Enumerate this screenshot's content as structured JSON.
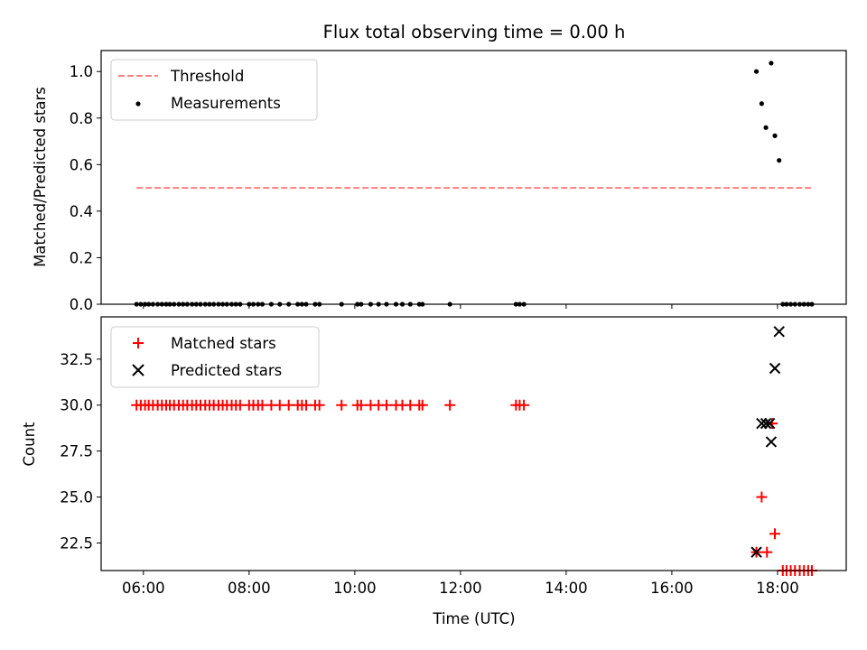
{
  "chart_data": [
    {
      "type": "scatter",
      "title": "Flux total observing time = 0.00 h",
      "ylabel": "Matched/Predicted stars",
      "xlabel": "",
      "ylim": [
        0,
        1.09
      ],
      "xlim_hours": [
        5.2,
        19.3
      ],
      "yticks": [
        0,
        0.2,
        0.4,
        0.6,
        0.8,
        1.0
      ],
      "ytick_labels": [
        "0.0",
        "0.2",
        "0.4",
        "0.6",
        "0.8",
        "1.0"
      ],
      "legend_position": "top-left",
      "series": [
        {
          "name": "Threshold",
          "kind": "dashed-line",
          "color": "#ff7f7f",
          "x": [
            5.87,
            18.65
          ],
          "y": [
            0.5,
            0.5
          ]
        },
        {
          "name": "Measurements",
          "kind": "dot",
          "color": "#000000",
          "x": [
            5.87,
            5.95,
            6.03,
            6.1,
            6.18,
            6.27,
            6.35,
            6.43,
            6.5,
            6.58,
            6.67,
            6.75,
            6.83,
            6.92,
            7.0,
            7.08,
            7.17,
            7.25,
            7.33,
            7.42,
            7.5,
            7.58,
            7.67,
            7.75,
            7.83,
            8.0,
            8.08,
            8.17,
            8.25,
            8.42,
            8.58,
            8.75,
            8.92,
            9.0,
            9.08,
            9.25,
            9.33,
            9.75,
            10.05,
            10.12,
            10.3,
            10.45,
            10.6,
            10.78,
            10.9,
            11.05,
            11.22,
            11.28,
            11.8,
            13.05,
            13.12,
            13.2,
            18.1,
            18.17,
            18.25,
            18.33,
            18.42,
            18.5,
            18.58,
            18.65,
            17.6,
            17.7,
            17.78,
            17.88,
            17.95,
            18.03
          ],
          "y": [
            0,
            0,
            0,
            0,
            0,
            0,
            0,
            0,
            0,
            0,
            0,
            0,
            0,
            0,
            0,
            0,
            0,
            0,
            0,
            0,
            0,
            0,
            0,
            0,
            0,
            0,
            0,
            0,
            0,
            0,
            0,
            0,
            0,
            0,
            0,
            0,
            0,
            0,
            0,
            0,
            0,
            0,
            0,
            0,
            0,
            0,
            0,
            0,
            0,
            0,
            0,
            0,
            0,
            0,
            0,
            0,
            0,
            0,
            0,
            0,
            1.0,
            0.862,
            0.759,
            1.036,
            0.724,
            0.618
          ]
        }
      ]
    },
    {
      "type": "scatter",
      "title": "",
      "ylabel": "Count",
      "xlabel": "Time (UTC)",
      "ylim": [
        21,
        34.8
      ],
      "xlim_hours": [
        5.2,
        19.3
      ],
      "yticks": [
        22.5,
        25.0,
        27.5,
        30.0,
        32.5
      ],
      "ytick_labels": [
        "22.5",
        "25.0",
        "27.5",
        "30.0",
        "32.5"
      ],
      "xticks_hours": [
        6,
        8,
        10,
        12,
        14,
        16,
        18
      ],
      "xtick_labels": [
        "06:00",
        "08:00",
        "10:00",
        "12:00",
        "14:00",
        "16:00",
        "18:00"
      ],
      "legend_position": "top-left",
      "series": [
        {
          "name": "Matched stars",
          "kind": "plus",
          "color": "#ff0000",
          "x": [
            5.87,
            5.95,
            6.03,
            6.1,
            6.18,
            6.27,
            6.35,
            6.43,
            6.5,
            6.58,
            6.67,
            6.75,
            6.83,
            6.92,
            7.0,
            7.08,
            7.17,
            7.25,
            7.33,
            7.42,
            7.5,
            7.58,
            7.67,
            7.75,
            7.83,
            8.0,
            8.08,
            8.17,
            8.25,
            8.42,
            8.58,
            8.75,
            8.92,
            9.0,
            9.08,
            9.25,
            9.33,
            9.75,
            10.05,
            10.12,
            10.3,
            10.45,
            10.6,
            10.78,
            10.9,
            11.05,
            11.22,
            11.28,
            11.8,
            13.05,
            13.12,
            13.2,
            17.6,
            17.7,
            17.8,
            17.9,
            17.95,
            18.1,
            18.17,
            18.25,
            18.33,
            18.42,
            18.5,
            18.58,
            18.65
          ],
          "y": [
            30,
            30,
            30,
            30,
            30,
            30,
            30,
            30,
            30,
            30,
            30,
            30,
            30,
            30,
            30,
            30,
            30,
            30,
            30,
            30,
            30,
            30,
            30,
            30,
            30,
            30,
            30,
            30,
            30,
            30,
            30,
            30,
            30,
            30,
            30,
            30,
            30,
            30,
            30,
            30,
            30,
            30,
            30,
            30,
            30,
            30,
            30,
            30,
            30,
            30,
            30,
            30,
            22,
            25,
            22,
            29,
            23,
            21,
            21,
            21,
            21,
            21,
            21,
            21,
            21
          ]
        },
        {
          "name": "Predicted stars",
          "kind": "cross",
          "color": "#000000",
          "x": [
            17.6,
            17.7,
            17.78,
            17.85,
            17.88,
            17.95,
            18.03
          ],
          "y": [
            22,
            29,
            29,
            29,
            28,
            32,
            34
          ]
        }
      ]
    }
  ]
}
